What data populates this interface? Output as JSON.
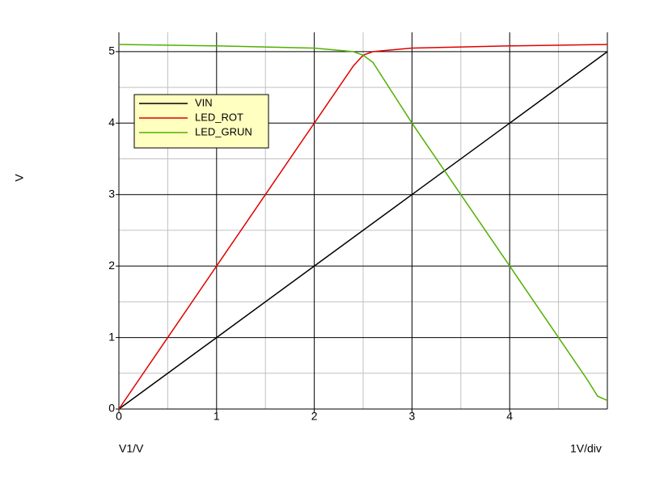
{
  "chart_data": {
    "type": "line",
    "y_label": "V",
    "x_label": "V1/V",
    "x_scale_note": "1V/div",
    "xlim": [
      0,
      5
    ],
    "ylim": [
      0,
      5.27
    ],
    "xticks": [
      0,
      1,
      2,
      3,
      4
    ],
    "yticks": [
      0,
      1,
      2,
      3,
      4,
      5
    ],
    "x_major_grid": [
      1,
      2,
      3,
      4,
      5
    ],
    "y_major_grid": [
      1,
      2,
      3,
      4,
      5
    ],
    "x_minor_grid": [
      0.5,
      1.5,
      2.5,
      3.5,
      4.5
    ],
    "y_minor_grid": [
      0.5,
      1.5,
      2.5,
      3.5,
      4.5
    ],
    "grid": true,
    "legend": "upper left",
    "series": [
      {
        "name": "VIN",
        "color": "#000000",
        "x": [
          0,
          1,
          2,
          3,
          4,
          5
        ],
        "values": [
          0,
          1,
          2,
          3,
          4,
          5
        ]
      },
      {
        "name": "LED_ROT",
        "color": "#e00000",
        "x": [
          0,
          0.5,
          1,
          1.5,
          2,
          2.4,
          2.5,
          2.6,
          3,
          4,
          5
        ],
        "values": [
          0,
          1,
          2,
          3,
          4,
          4.8,
          4.95,
          5.0,
          5.05,
          5.08,
          5.1
        ]
      },
      {
        "name": "LED_GRUN",
        "color": "#50b000",
        "x": [
          0,
          1,
          2,
          2.4,
          2.5,
          2.6,
          3,
          4,
          4.5,
          4.8,
          4.9,
          5
        ],
        "values": [
          5.1,
          5.08,
          5.05,
          5.0,
          4.95,
          4.85,
          4,
          2,
          1,
          0.4,
          0.18,
          0.12
        ]
      }
    ]
  }
}
